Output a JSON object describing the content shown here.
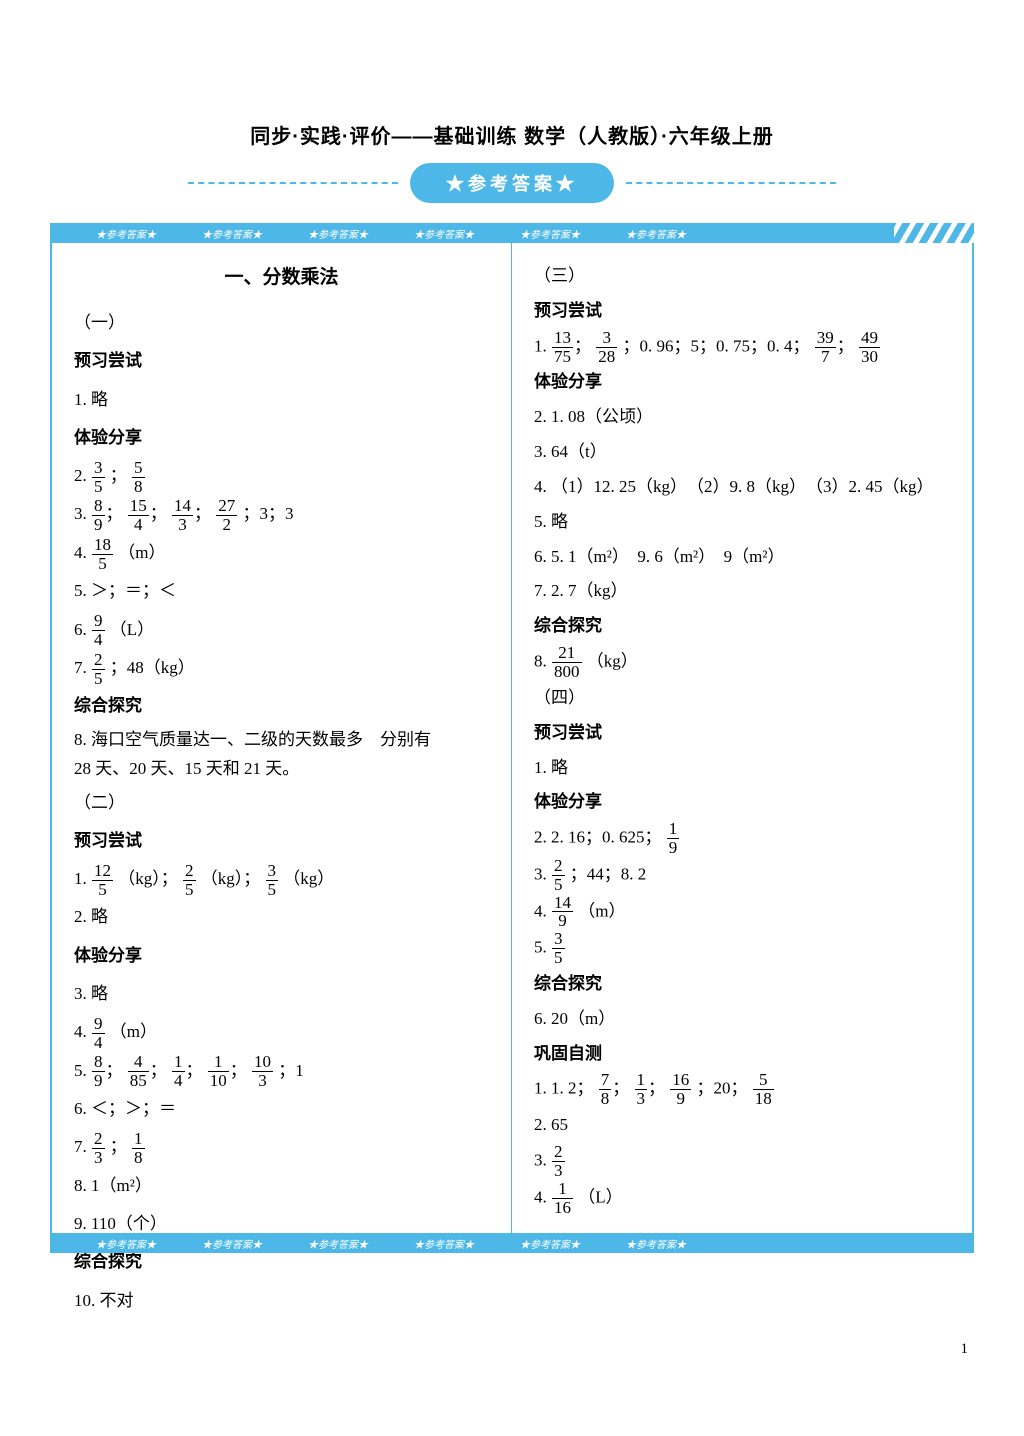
{
  "document": {
    "title": "同步·实践·评价——基础训练 数学（人教版）·六年级上册",
    "badge": "★参考答案★",
    "strip_tag": "★参考答案★",
    "page_number": "1",
    "dash_color": "#4db8e8",
    "accent_color": "#4db8e8",
    "background_color": "#ffffff",
    "text_color": "#000000",
    "title_fontsize": 20,
    "body_fontsize": 17
  },
  "left": {
    "chapter_title": "一、分数乘法",
    "s1": {
      "num": "（一）",
      "h1": "预习尝试",
      "l1": "1. 略",
      "h2": "体验分享",
      "l2_pre": "2. ",
      "l2_f1n": "3",
      "l2_f1d": "5",
      "l2_sep": "；",
      "l2_f2n": "5",
      "l2_f2d": "8",
      "l3_pre": "3. ",
      "l3_f1n": "8",
      "l3_f1d": "9",
      "l3_f2n": "15",
      "l3_f2d": "4",
      "l3_f3n": "14",
      "l3_f3d": "3",
      "l3_f4n": "27",
      "l3_f4d": "2",
      "l3_tail": "；3；3",
      "l4_pre": "4. ",
      "l4_fn": "18",
      "l4_fd": "5",
      "l4_tail": "（m）",
      "l5": "5. ＞；＝；＜",
      "l6_pre": "6. ",
      "l6_fn": "9",
      "l6_fd": "4",
      "l6_tail": "（L）",
      "l7_pre": "7. ",
      "l7_fn": "2",
      "l7_fd": "5",
      "l7_tail": "；48（kg）",
      "h3": "综合探究",
      "l8a": "8. 海口空气质量达一、二级的天数最多　分别有",
      "l8b": "28 天、20 天、15 天和 21 天。"
    },
    "s2": {
      "num": "（二）",
      "h1": "预习尝试",
      "l1_pre": "1. ",
      "l1_f1n": "12",
      "l1_f1d": "5",
      "l1_u": "（kg）；",
      "l1_f2n": "2",
      "l1_f2d": "5",
      "l1_f3n": "3",
      "l1_f3d": "5",
      "l1_u3": "（kg）",
      "l2": "2. 略",
      "h2": "体验分享",
      "l3": "3. 略",
      "l4_pre": "4. ",
      "l4_fn": "9",
      "l4_fd": "4",
      "l4_tail": "（m）",
      "l5_pre": "5. ",
      "l5_f1n": "8",
      "l5_f1d": "9",
      "l5_f2n": "4",
      "l5_f2d": "85",
      "l5_f3n": "1",
      "l5_f3d": "4",
      "l5_f4n": "1",
      "l5_f4d": "10",
      "l5_f5n": "10",
      "l5_f5d": "3",
      "l5_tail": "；1",
      "l6": "6. ＜；＞；＝",
      "l7_pre": "7. ",
      "l7_f1n": "2",
      "l7_f1d": "3",
      "l7_sep": "；",
      "l7_f2n": "1",
      "l7_f2d": "8",
      "l8": "8. 1（m²）",
      "l9": "9. 110（个）",
      "h3": "综合探究",
      "l10": "10. 不对"
    }
  },
  "right": {
    "s3": {
      "num": "（三）",
      "h1": "预习尝试",
      "l1_pre": "1. ",
      "l1_f1n": "13",
      "l1_f1d": "75",
      "l1_f2n": "3",
      "l1_f2d": "28",
      "l1_mid": "；0. 96；5；0. 75；0. 4；",
      "l1_f3n": "39",
      "l1_f3d": "7",
      "l1_f4n": "49",
      "l1_f4d": "30",
      "h2": "体验分享",
      "l2": "2. 1. 08（公顷）",
      "l3": "3. 64（t）",
      "l4": "4. （1）12. 25（kg）　（2）9. 8（kg）　（3）2. 45（kg）",
      "l5": "5. 略",
      "l6": "6. 5. 1（m²）　9. 6（m²）　9（m²）",
      "l7": "7. 2. 7（kg）",
      "h3": "综合探究",
      "l8_pre": "8. ",
      "l8_fn": "21",
      "l8_fd": "800",
      "l8_tail": "（kg）"
    },
    "s4": {
      "num": "（四）",
      "h1": "预习尝试",
      "l1": "1. 略",
      "h2": "体验分享",
      "l2_pre": "2. 2. 16；0. 625；",
      "l2_fn": "1",
      "l2_fd": "9",
      "l3_pre": "3. ",
      "l3_fn": "2",
      "l3_fd": "5",
      "l3_tail": "；44；8. 2",
      "l4_pre": "4. ",
      "l4_fn": "14",
      "l4_fd": "9",
      "l4_tail": "（m）",
      "l5_pre": "5. ",
      "l5_fn": "3",
      "l5_fd": "5",
      "h3": "综合探究",
      "l6": "6. 20（m）",
      "h4": "巩固自测",
      "g1_pre": "1. 1. 2；",
      "g1_f1n": "7",
      "g1_f1d": "8",
      "g1_f2n": "1",
      "g1_f2d": "3",
      "g1_f3n": "16",
      "g1_f3d": "9",
      "g1_mid": "；20；",
      "g1_f4n": "5",
      "g1_f4d": "18",
      "g2": "2. 65",
      "g3_pre": "3. ",
      "g3_fn": "2",
      "g3_fd": "3",
      "g4_pre": "4. ",
      "g4_fn": "1",
      "g4_fd": "16",
      "g4_tail": "（L）"
    }
  }
}
